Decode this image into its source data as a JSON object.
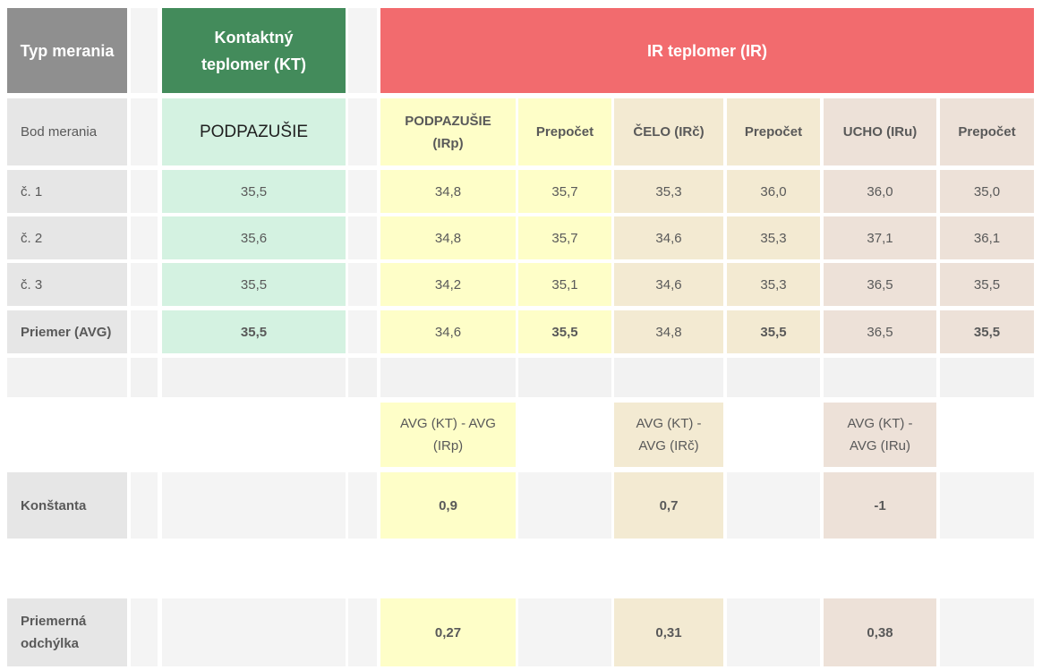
{
  "header": {
    "type_label": "Typ merania",
    "kt_label": "Kontaktný teplomer (KT)",
    "ir_label": "IR teplomer (IR)"
  },
  "subheader": {
    "point_label": "Bod merania",
    "kt_point": "PODPAZUŠIE",
    "ir_armpit": "PODPAZUŠIE (IRp)",
    "recalc1": "Prepočet",
    "forehead": "ČELO (IRč)",
    "recalc2": "Prepočet",
    "ear": "UCHO (IRu)",
    "recalc3": "Prepočet"
  },
  "rows": [
    {
      "label": "č. 1",
      "kt": "35,5",
      "irp": "34,8",
      "irp_re": "35,7",
      "irc": "35,3",
      "irc_re": "36,0",
      "iru": "36,0",
      "iru_re": "35,0"
    },
    {
      "label": "č. 2",
      "kt": "35,6",
      "irp": "34,8",
      "irp_re": "35,7",
      "irc": "34,6",
      "irc_re": "35,3",
      "iru": "37,1",
      "iru_re": "36,1"
    },
    {
      "label": "č. 3",
      "kt": "35,5",
      "irp": "34,2",
      "irp_re": "35,1",
      "irc": "34,6",
      "irc_re": "35,3",
      "iru": "36,5",
      "iru_re": "35,5"
    }
  ],
  "avg": {
    "label": "Priemer (AVG)",
    "kt": "35,5",
    "irp": "34,6",
    "irp_re": "35,5",
    "irc": "34,8",
    "irc_re": "35,5",
    "iru": "36,5",
    "iru_re": "35,5"
  },
  "diff_labels": {
    "irp": "AVG (KT) - AVG (IRp)",
    "irc": "AVG (KT) - AVG (IRč)",
    "iru": "AVG (KT) - AVG (IRu)"
  },
  "constant": {
    "label": "Konštanta",
    "irp": "0,9",
    "irc": "0,7",
    "iru": "-1"
  },
  "deviation": {
    "label": "Priemerná odchýlka",
    "irp": "0,27",
    "irc": "0,31",
    "iru": "0,38"
  },
  "colors": {
    "header_gray": "#8f8f8f",
    "header_green": "#438b5b",
    "header_red": "#f26b6e",
    "kt_fill": "#d4f2e1",
    "armpit_fill": "#fefec8",
    "forehead_fill": "#f3ead2",
    "ear_fill": "#ede1d8"
  }
}
